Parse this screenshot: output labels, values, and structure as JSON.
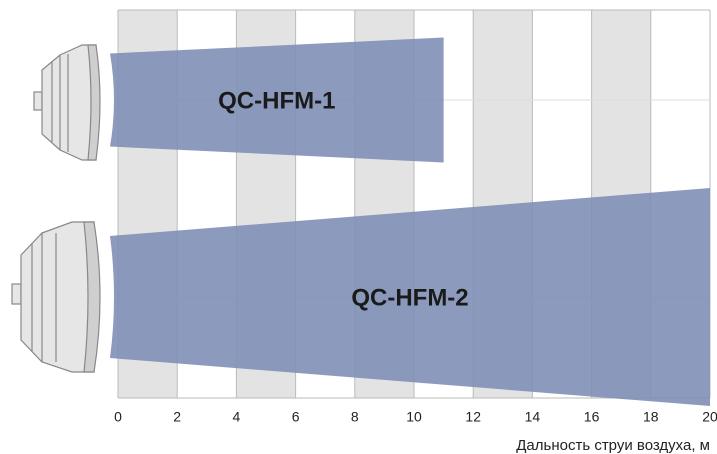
{
  "chart_data": {
    "type": "bar",
    "orientation": "horizontal",
    "categories": [
      "QC-HFM-1",
      "QC-HFM-2"
    ],
    "values": [
      11,
      20
    ],
    "color": "#7f8fb6",
    "xlim": [
      0,
      20
    ],
    "xticks": [
      0,
      2,
      4,
      6,
      8,
      10,
      12,
      14,
      16,
      18,
      20
    ],
    "xlabel": "Дальность струи воздуха, м",
    "grid": true
  }
}
